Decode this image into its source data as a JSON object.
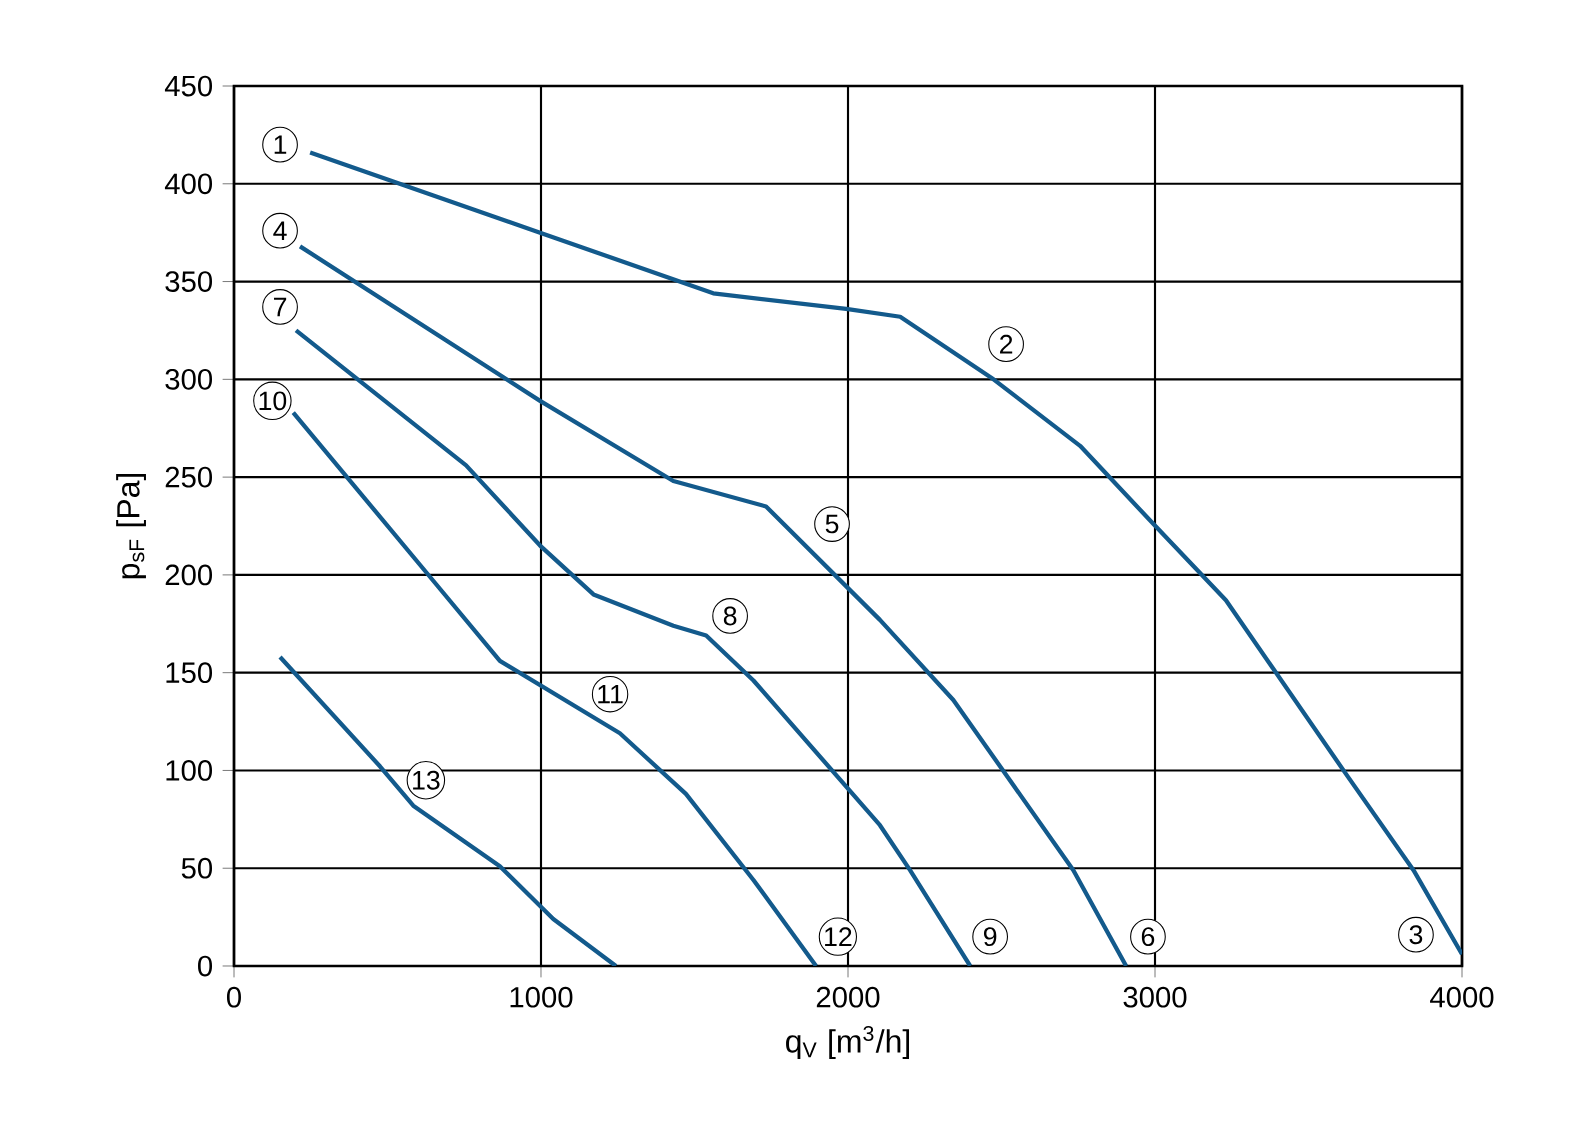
{
  "chart_data": {
    "type": "line",
    "xlabel": "q$_{V}$ [m$^{3}$/h]",
    "ylabel": "p$_{sF}$ [Pa]",
    "xlim": [
      0,
      4000
    ],
    "xticks": [
      0,
      1000,
      2000,
      3000,
      4000
    ],
    "ylim": [
      0,
      450
    ],
    "yticks": [
      0,
      50,
      100,
      150,
      200,
      250,
      300,
      350,
      400,
      450
    ],
    "grid": true,
    "marker": "none",
    "line_style": "solid",
    "series": [
      {
        "color": "#135a8c",
        "x": [
          248,
          997,
          1561,
          1994,
          2170,
          2474,
          2756,
          2995,
          3231,
          3623,
          3842,
          4000
        ],
        "values": [
          416,
          375,
          344,
          336,
          332,
          300,
          266,
          226,
          187,
          98,
          49,
          6
        ]
      },
      {
        "color": "#135a8c",
        "x": [
          215,
          997,
          1431,
          1733,
          2104,
          2343,
          2734,
          2906
        ],
        "values": [
          368,
          289,
          248,
          235,
          177,
          136,
          49,
          0
        ]
      },
      {
        "color": "#135a8c",
        "x": [
          202,
          756,
          997,
          1171,
          1431,
          1538,
          1692,
          2104,
          2202,
          2398
        ],
        "values": [
          325,
          256,
          215,
          190,
          174,
          169,
          146,
          72,
          49,
          0
        ]
      },
      {
        "color": "#135a8c",
        "x": [
          193,
          649,
          866,
          1257,
          1472,
          1692,
          1896
        ],
        "values": [
          283,
          197,
          156,
          119,
          88,
          44,
          0
        ]
      },
      {
        "color": "#135a8c",
        "x": [
          150,
          476,
          584,
          866,
          1040,
          1244
        ],
        "values": [
          158,
          102,
          82,
          51,
          24,
          0
        ]
      }
    ],
    "annotations": [
      {
        "text": "1",
        "x": 150,
        "y": 420
      },
      {
        "text": "2",
        "x": 2515,
        "y": 318
      },
      {
        "text": "3",
        "x": 3850,
        "y": 16
      },
      {
        "text": "4",
        "x": 150,
        "y": 376
      },
      {
        "text": "5",
        "x": 1948,
        "y": 226
      },
      {
        "text": "6",
        "x": 2977,
        "y": 15
      },
      {
        "text": "7",
        "x": 150,
        "y": 337
      },
      {
        "text": "8",
        "x": 1616,
        "y": 179
      },
      {
        "text": "9",
        "x": 2463,
        "y": 15
      },
      {
        "text": "10",
        "x": 125,
        "y": 289
      },
      {
        "text": "11",
        "x": 1225,
        "y": 139
      },
      {
        "text": "12",
        "x": 1967,
        "y": 15
      },
      {
        "text": "13",
        "x": 625,
        "y": 95
      }
    ]
  }
}
